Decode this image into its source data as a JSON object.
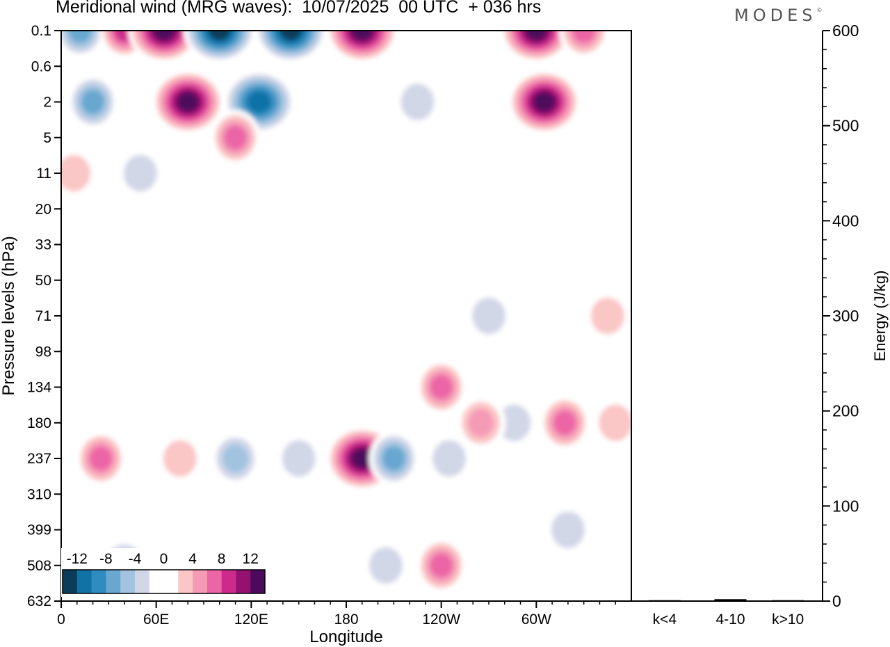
{
  "header": {
    "title": "Meridional wind (MRG waves):  10/07/2025  00 UTC  + 036 hrs",
    "logo": "MODES"
  },
  "chart_data": [
    {
      "type": "heatmap",
      "title": "Meridional wind (MRG waves):  10/07/2025  00 UTC  + 036 hrs",
      "xlabel": "Longitude",
      "ylabel": "Pressure levels (hPa)",
      "x_ticks": [
        "0",
        "60E",
        "120E",
        "180",
        "120W",
        "60W"
      ],
      "x_tick_values": [
        0,
        60,
        120,
        180,
        240,
        300
      ],
      "xlim": [
        0,
        360
      ],
      "y_ticks": [
        "0.1",
        "0.6",
        "2",
        "5",
        "11",
        "20",
        "33",
        "50",
        "71",
        "98",
        "134",
        "180",
        "237",
        "310",
        "399",
        "508",
        "632"
      ],
      "colorbar": {
        "labels": [
          "-12",
          "-8",
          "-4",
          "0",
          "4",
          "8",
          "12"
        ],
        "colors": [
          "#0b3c5a",
          "#1172a5",
          "#2e8cc0",
          "#67a7d0",
          "#a2c3e0",
          "#d2d7e8",
          "#ffffff",
          "#ffffff",
          "#fbc6c6",
          "#f69bb6",
          "#ec65a6",
          "#cd2b8c",
          "#95116f",
          "#4d0a5c"
        ]
      },
      "contour_cells": [
        {
          "lon": 12,
          "level": "0.1",
          "v": -8
        },
        {
          "lon": 40,
          "level": "0.1",
          "v": 10
        },
        {
          "lon": 65,
          "level": "0.1",
          "v": 14
        },
        {
          "lon": 100,
          "level": "0.1",
          "v": -14
        },
        {
          "lon": 145,
          "level": "0.1",
          "v": -14
        },
        {
          "lon": 190,
          "level": "0.1",
          "v": 14
        },
        {
          "lon": 300,
          "level": "0.1",
          "v": 14
        },
        {
          "lon": 330,
          "level": "0.1",
          "v": 8
        },
        {
          "lon": 80,
          "level": "2",
          "v": 14
        },
        {
          "lon": 20,
          "level": "2",
          "v": -8
        },
        {
          "lon": 125,
          "level": "2",
          "v": -12
        },
        {
          "lon": 225,
          "level": "2",
          "v": -4
        },
        {
          "lon": 305,
          "level": "2",
          "v": 14
        },
        {
          "lon": 110,
          "level": "5",
          "v": 8
        },
        {
          "lon": 50,
          "level": "11",
          "v": -4
        },
        {
          "lon": 145,
          "level": "11",
          "v": 2
        },
        {
          "lon": 165,
          "level": "11",
          "v": -2
        },
        {
          "lon": 8,
          "level": "11",
          "v": 4
        },
        {
          "lon": 100,
          "level": "20",
          "v": 2
        },
        {
          "lon": 290,
          "level": "33",
          "v": -2
        },
        {
          "lon": 65,
          "level": "71",
          "v": 2
        },
        {
          "lon": 270,
          "level": "71",
          "v": -4
        },
        {
          "lon": 345,
          "level": "71",
          "v": 4
        },
        {
          "lon": 10,
          "level": "98",
          "v": 2
        },
        {
          "lon": 240,
          "level": "134",
          "v": 8
        },
        {
          "lon": 190,
          "level": "237",
          "v": 14
        },
        {
          "lon": 210,
          "level": "237",
          "v": -8
        },
        {
          "lon": 110,
          "level": "237",
          "v": -6
        },
        {
          "lon": 150,
          "level": "237",
          "v": -4
        },
        {
          "lon": 25,
          "level": "237",
          "v": 8
        },
        {
          "lon": 75,
          "level": "237",
          "v": 4
        },
        {
          "lon": 318,
          "level": "180",
          "v": 8
        },
        {
          "lon": 286,
          "level": "180",
          "v": -4
        },
        {
          "lon": 350,
          "level": "180",
          "v": 4
        },
        {
          "lon": 265,
          "level": "180",
          "v": 6
        },
        {
          "lon": 245,
          "level": "237",
          "v": -4
        },
        {
          "lon": 240,
          "level": "508",
          "v": 8
        },
        {
          "lon": 205,
          "level": "508",
          "v": -4
        },
        {
          "lon": 40,
          "level": "508",
          "v": -6
        },
        {
          "lon": 145,
          "level": "632",
          "v": 2
        },
        {
          "lon": 320,
          "level": "399",
          "v": -4
        }
      ]
    },
    {
      "type": "bar",
      "categories": [
        "k<4",
        "4-10",
        "k>10"
      ],
      "values": [
        1,
        2,
        1
      ],
      "ylabel": "Energy (J/kg)",
      "ylim": [
        0,
        600
      ],
      "y_ticks": [
        "0",
        "100",
        "200",
        "300",
        "400",
        "500",
        "600"
      ]
    }
  ]
}
